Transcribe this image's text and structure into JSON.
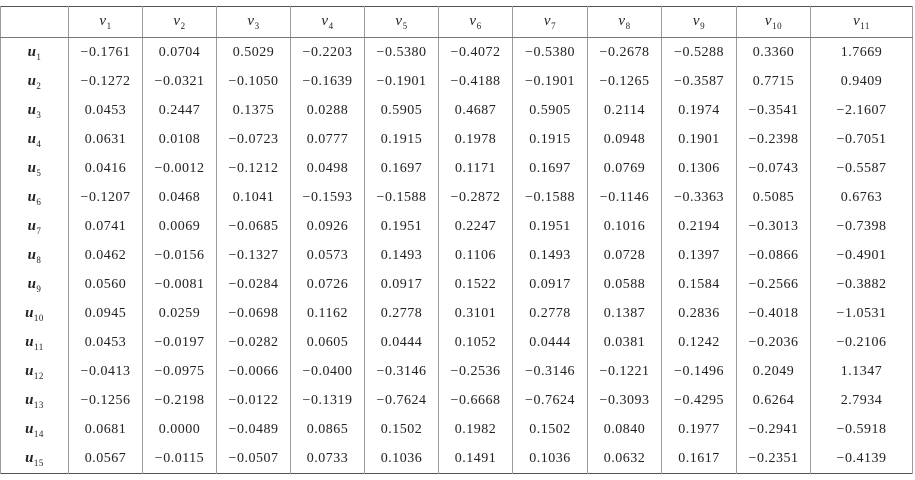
{
  "table": {
    "columns": [
      {
        "symbol": "v",
        "index": "1"
      },
      {
        "symbol": "v",
        "index": "2"
      },
      {
        "symbol": "v",
        "index": "3"
      },
      {
        "symbol": "v",
        "index": "4"
      },
      {
        "symbol": "v",
        "index": "5"
      },
      {
        "symbol": "v",
        "index": "6"
      },
      {
        "symbol": "v",
        "index": "7"
      },
      {
        "symbol": "v",
        "index": "8"
      },
      {
        "symbol": "v",
        "index": "9"
      },
      {
        "symbol": "v",
        "index": "10"
      },
      {
        "symbol": "v",
        "index": "11"
      }
    ],
    "rows": [
      {
        "label": {
          "symbol": "u",
          "index": "1"
        },
        "cells": [
          "−0.1761",
          "0.0704",
          "0.5029",
          "−0.2203",
          "−0.5380",
          "−0.4072",
          "−0.5380",
          "−0.2678",
          "−0.5288",
          "0.3360",
          "1.7669"
        ]
      },
      {
        "label": {
          "symbol": "u",
          "index": "2"
        },
        "cells": [
          "−0.1272",
          "−0.0321",
          "−0.1050",
          "−0.1639",
          "−0.1901",
          "−0.4188",
          "−0.1901",
          "−0.1265",
          "−0.3587",
          "0.7715",
          "0.9409"
        ]
      },
      {
        "label": {
          "symbol": "u",
          "index": "3"
        },
        "cells": [
          "0.0453",
          "0.2447",
          "0.1375",
          "0.0288",
          "0.5905",
          "0.4687",
          "0.5905",
          "0.2114",
          "0.1974",
          "−0.3541",
          "−2.1607"
        ]
      },
      {
        "label": {
          "symbol": "u",
          "index": "4"
        },
        "cells": [
          "0.0631",
          "0.0108",
          "−0.0723",
          "0.0777",
          "0.1915",
          "0.1978",
          "0.1915",
          "0.0948",
          "0.1901",
          "−0.2398",
          "−0.7051"
        ]
      },
      {
        "label": {
          "symbol": "u",
          "index": "5"
        },
        "cells": [
          "0.0416",
          "−0.0012",
          "−0.1212",
          "0.0498",
          "0.1697",
          "0.1171",
          "0.1697",
          "0.0769",
          "0.1306",
          "−0.0743",
          "−0.5587"
        ]
      },
      {
        "label": {
          "symbol": "u",
          "index": "6"
        },
        "cells": [
          "−0.1207",
          "0.0468",
          "0.1041",
          "−0.1593",
          "−0.1588",
          "−0.2872",
          "−0.1588",
          "−0.1146",
          "−0.3363",
          "0.5085",
          "0.6763"
        ]
      },
      {
        "label": {
          "symbol": "u",
          "index": "7"
        },
        "cells": [
          "0.0741",
          "0.0069",
          "−0.0685",
          "0.0926",
          "0.1951",
          "0.2247",
          "0.1951",
          "0.1016",
          "0.2194",
          "−0.3013",
          "−0.7398"
        ]
      },
      {
        "label": {
          "symbol": "u",
          "index": "8"
        },
        "cells": [
          "0.0462",
          "−0.0156",
          "−0.1327",
          "0.0573",
          "0.1493",
          "0.1106",
          "0.1493",
          "0.0728",
          "0.1397",
          "−0.0866",
          "−0.4901"
        ]
      },
      {
        "label": {
          "symbol": "u",
          "index": "9"
        },
        "cells": [
          "0.0560",
          "−0.0081",
          "−0.0284",
          "0.0726",
          "0.0917",
          "0.1522",
          "0.0917",
          "0.0588",
          "0.1584",
          "−0.2566",
          "−0.3882"
        ]
      },
      {
        "label": {
          "symbol": "u",
          "index": "10"
        },
        "cells": [
          "0.0945",
          "0.0259",
          "−0.0698",
          "0.1162",
          "0.2778",
          "0.3101",
          "0.2778",
          "0.1387",
          "0.2836",
          "−0.4018",
          "−1.0531"
        ]
      },
      {
        "label": {
          "symbol": "u",
          "index": "11"
        },
        "cells": [
          "0.0453",
          "−0.0197",
          "−0.0282",
          "0.0605",
          "0.0444",
          "0.1052",
          "0.0444",
          "0.0381",
          "0.1242",
          "−0.2036",
          "−0.2106"
        ]
      },
      {
        "label": {
          "symbol": "u",
          "index": "12"
        },
        "cells": [
          "−0.0413",
          "−0.0975",
          "−0.0066",
          "−0.0400",
          "−0.3146",
          "−0.2536",
          "−0.3146",
          "−0.1221",
          "−0.1496",
          "0.2049",
          "1.1347"
        ]
      },
      {
        "label": {
          "symbol": "u",
          "index": "13"
        },
        "cells": [
          "−0.1256",
          "−0.2198",
          "−0.0122",
          "−0.1319",
          "−0.7624",
          "−0.6668",
          "−0.7624",
          "−0.3093",
          "−0.4295",
          "0.6264",
          "2.7934"
        ]
      },
      {
        "label": {
          "symbol": "u",
          "index": "14"
        },
        "cells": [
          "0.0681",
          "0.0000",
          "−0.0489",
          "0.0865",
          "0.1502",
          "0.1982",
          "0.1502",
          "0.0840",
          "0.1977",
          "−0.2941",
          "−0.5918"
        ]
      },
      {
        "label": {
          "symbol": "u",
          "index": "15"
        },
        "cells": [
          "0.0567",
          "−0.0115",
          "−0.0507",
          "0.0733",
          "0.1036",
          "0.1491",
          "0.1036",
          "0.0632",
          "0.1617",
          "−0.2351",
          "−0.4139"
        ]
      }
    ]
  }
}
